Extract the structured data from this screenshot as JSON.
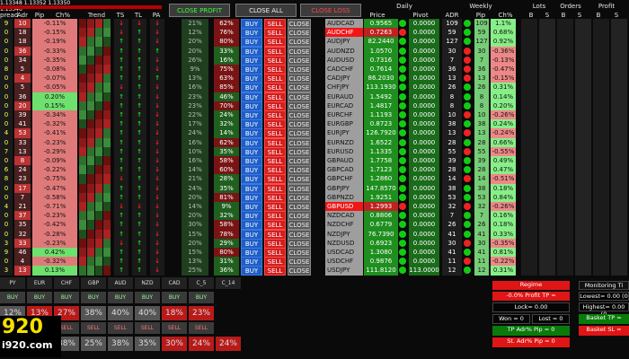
{
  "header": {
    "ticker_line": "1.13348 1.13352 1.13350 1.13346",
    "col_spread": "pread",
    "col_adr": "Adr",
    "col_pip": "Pip",
    "col_chg": "Ch%",
    "col_trend": "Trend",
    "col_ts": "TS",
    "col_tl": "TL",
    "col_pa": "PA",
    "close_profit": "CLOSE PROFIT",
    "close_all": "CLOSE ALL",
    "close_loss": "CLOSE LOSS",
    "daily": "Daily",
    "price": "Price",
    "pivot": "Pivot",
    "weekly": "Weekly",
    "adr": "ADR",
    "pip": "Pip",
    "chg": "Ch%",
    "lots": "Lots",
    "orders": "Orders",
    "profit": "Profit",
    "b": "B",
    "s": "S"
  },
  "labels": {
    "buy": "BUY",
    "sell": "SELL",
    "close": "CLOSE"
  },
  "rows": [
    {
      "sp": "9",
      "adr": "10",
      "pip": "-0.11%",
      "ts": "↓",
      "tl": "↓",
      "pa": "↓",
      "p1": "21%",
      "p2": "62%",
      "sym": "AUDCAD",
      "sr": false,
      "price": "0.9565",
      "pivot": "0.0000",
      "wadr": "109",
      "wpip": "1.1%"
    },
    {
      "sp": "0",
      "adr": "18",
      "pip": "-0.15%",
      "ts": "↓",
      "tl": "↑",
      "pa": "↓",
      "p1": "12%",
      "p2": "76%",
      "sym": "AUDCHF",
      "sr": true,
      "price": "0.7263",
      "pivot": "0.0000",
      "wadr": "59",
      "wpip": "0.68%"
    },
    {
      "sp": "0",
      "adr": "18",
      "pip": "-0.19%",
      "ts": "↑",
      "tl": "↑",
      "pa": "↓",
      "p1": "20%",
      "p2": "80%",
      "sym": "AUDJPY",
      "sr": false,
      "price": "82.2440",
      "pivot": "0.0000",
      "wadr": "127",
      "wpip": "0.92%"
    },
    {
      "sp": "0",
      "adr": "36",
      "pip": "-0.33%",
      "ts": "↑",
      "tl": "↑",
      "pa": "↑",
      "p1": "20%",
      "p2": "33%",
      "sym": "AUDNZD",
      "sr": false,
      "price": "1.0570",
      "pivot": "0.0000",
      "wadr": "30",
      "wpip": "-0.36%"
    },
    {
      "sp": "0",
      "adr": "34",
      "pip": "-0.35%",
      "ts": "↑",
      "tl": "↑",
      "pa": "↓",
      "p1": "26%",
      "p2": "16%",
      "sym": "AUDUSD",
      "sr": false,
      "price": "0.7316",
      "pivot": "0.0000",
      "wadr": "7",
      "wpip": "-0.13%"
    },
    {
      "sp": "8",
      "adr": "5",
      "pip": "-0.08%",
      "ts": "↑",
      "tl": "↑",
      "pa": "↓",
      "p1": "9%",
      "p2": "75%",
      "sym": "CADCHF",
      "sr": false,
      "price": "0.7614",
      "pivot": "0.0000",
      "wadr": "36",
      "wpip": "-0.47%"
    },
    {
      "sp": "0",
      "adr": "4",
      "pip": "-0.07%",
      "ts": "↑",
      "tl": "↑",
      "pa": "↑",
      "p1": "13%",
      "p2": "63%",
      "sym": "CADJPY",
      "sr": false,
      "price": "86.2030",
      "pivot": "0.0000",
      "wadr": "13",
      "wpip": "-0.15%"
    },
    {
      "sp": "0",
      "adr": "5",
      "pip": "-0.05%",
      "ts": "↓",
      "tl": "↑",
      "pa": "↓",
      "p1": "16%",
      "p2": "85%",
      "sym": "CHFJPY",
      "sr": false,
      "price": "113.1930",
      "pivot": "0.0000",
      "wadr": "26",
      "wpip": "0.31%"
    },
    {
      "sp": "0",
      "adr": "36",
      "pip": "0.20%",
      "ts": "↑",
      "tl": "↑",
      "pa": "↓",
      "p1": "23%",
      "p2": "46%",
      "sym": "EURAUD",
      "sr": false,
      "price": "1.5492",
      "pivot": "0.0000",
      "wadr": "8",
      "wpip": "0.14%"
    },
    {
      "sp": "0",
      "adr": "20",
      "pip": "0.15%",
      "ts": "↑",
      "tl": "↑",
      "pa": "↓",
      "p1": "23%",
      "p2": "70%",
      "sym": "EURCAD",
      "sr": false,
      "price": "1.4817",
      "pivot": "0.0000",
      "wadr": "8",
      "wpip": "0.20%"
    },
    {
      "sp": "0",
      "adr": "39",
      "pip": "-0.34%",
      "ts": "↑",
      "tl": "↑",
      "pa": "↓",
      "p1": "22%",
      "p2": "24%",
      "sym": "EURCHF",
      "sr": false,
      "price": "1.1193",
      "pivot": "0.0000",
      "wadr": "10",
      "wpip": "-0.26%"
    },
    {
      "sp": "0",
      "adr": "41",
      "pip": "-0.32%",
      "ts": "↑",
      "tl": "↑",
      "pa": "↓",
      "p1": "17%",
      "p2": "32%",
      "sym": "EURGBP",
      "sr": false,
      "price": "0.8723",
      "pivot": "0.0000",
      "wadr": "38",
      "wpip": "0.24%"
    },
    {
      "sp": "4",
      "adr": "53",
      "pip": "-0.41%",
      "ts": "↑",
      "tl": "↑",
      "pa": "↓",
      "p1": "24%",
      "p2": "14%",
      "sym": "EURJPY",
      "sr": false,
      "price": "126.7920",
      "pivot": "0.0000",
      "wadr": "13",
      "wpip": "-0.24%"
    },
    {
      "sp": "0",
      "adr": "33",
      "pip": "-0.23%",
      "ts": "↑",
      "tl": "↑",
      "pa": "↓",
      "p1": "16%",
      "p2": "62%",
      "sym": "EURNZD",
      "sr": false,
      "price": "1.6522",
      "pivot": "0.0000",
      "wadr": "28",
      "wpip": "0.66%"
    },
    {
      "sp": "7",
      "adr": "13",
      "pip": "-0.29%",
      "ts": "↑",
      "tl": "↑",
      "pa": "↓",
      "p1": "10%",
      "p2": "35%",
      "sym": "EURUSD",
      "sr": false,
      "price": "1.1335",
      "pivot": "0.0000",
      "wadr": "55",
      "wpip": "-0.55%"
    },
    {
      "sp": "0",
      "adr": "8",
      "pip": "-0.09%",
      "ts": "↑",
      "tl": "↑",
      "pa": "↓",
      "p1": "16%",
      "p2": "58%",
      "sym": "GBPAUD",
      "sr": false,
      "price": "1.7758",
      "pivot": "0.0000",
      "wadr": "39",
      "wpip": "0.49%"
    },
    {
      "sp": "6",
      "adr": "24",
      "pip": "-0.22%",
      "ts": "↑",
      "tl": "↑",
      "pa": "↓",
      "p1": "14%",
      "p2": "60%",
      "sym": "GBPCAD",
      "sr": false,
      "price": "1.7123",
      "pivot": "0.0000",
      "wadr": "28",
      "wpip": "0.47%"
    },
    {
      "sp": "8",
      "adr": "23",
      "pip": "-0.75%",
      "ts": "↓",
      "tl": "↑",
      "pa": "↓",
      "p1": "21%",
      "p2": "28%",
      "sym": "GBPCHF",
      "sr": false,
      "price": "1.2860",
      "pivot": "0.0000",
      "wadr": "14",
      "wpip": "-0.51%"
    },
    {
      "sp": "0",
      "adr": "17",
      "pip": "-0.47%",
      "ts": "↑",
      "tl": "↑",
      "pa": "↓",
      "p1": "24%",
      "p2": "35%",
      "sym": "GBPJPY",
      "sr": false,
      "price": "147.8570",
      "pivot": "0.0000",
      "wadr": "38",
      "wpip": "0.18%"
    },
    {
      "sp": "0",
      "adr": "7",
      "pip": "-0.58%",
      "ts": "↑",
      "tl": "↑",
      "pa": "↓",
      "p1": "20%",
      "p2": "81%",
      "sym": "GBPNZD",
      "sr": false,
      "price": "1.9251",
      "pivot": "0.0000",
      "wadr": "53",
      "wpip": "0.84%"
    },
    {
      "sp": "4",
      "adr": "21",
      "pip": "-0.71%",
      "ts": "↓",
      "tl": "↓",
      "pa": "↓",
      "p1": "14%",
      "p2": "9%",
      "sym": "GBPUSD",
      "sr": true,
      "price": "1.2993",
      "pivot": "0.0000",
      "wadr": "32",
      "wpip": "-0.26%"
    },
    {
      "sp": "0",
      "adr": "37",
      "pip": "-0.23%",
      "ts": "↑",
      "tl": "↑",
      "pa": "↓",
      "p1": "20%",
      "p2": "32%",
      "sym": "NZDCAD",
      "sr": false,
      "price": "0.8806",
      "pivot": "0.0000",
      "wadr": "7",
      "wpip": "0.16%"
    },
    {
      "sp": "0",
      "adr": "35",
      "pip": "-0.42%",
      "ts": "↑",
      "tl": "↑",
      "pa": "↓",
      "p1": "30%",
      "p2": "58%",
      "sym": "NZDCHF",
      "sr": false,
      "price": "0.6779",
      "pivot": "0.0000",
      "wadr": "26",
      "wpip": "0.18%"
    },
    {
      "sp": "0",
      "adr": "32",
      "pip": "-0.28%",
      "ts": "↑",
      "tl": "↑",
      "pa": "↓",
      "p1": "15%",
      "p2": "78%",
      "sym": "NZDJPY",
      "sr": false,
      "price": "76.7390",
      "pivot": "0.0000",
      "wadr": "41",
      "wpip": "0.33%"
    },
    {
      "sp": "3",
      "adr": "33",
      "pip": "-0.23%",
      "ts": "↓",
      "tl": "↑",
      "pa": "↓",
      "p1": "20%",
      "p2": "29%",
      "sym": "NZDUSD",
      "sr": false,
      "price": "0.6923",
      "pivot": "0.0000",
      "wadr": "30",
      "wpip": "-0.35%"
    },
    {
      "sp": "9",
      "adr": "46",
      "pip": "0.42%",
      "ts": "↑",
      "tl": "↑",
      "pa": "↓",
      "p1": "15%",
      "p2": "80%",
      "sym": "USDCAD",
      "sr": false,
      "price": "1.3080",
      "pivot": "0.0000",
      "wadr": "41",
      "wpip": "0.81%"
    },
    {
      "sp": "0",
      "adr": "4",
      "pip": "-0.32%",
      "ts": "↑",
      "tl": "↑",
      "pa": "↓",
      "p1": "13%",
      "p2": "31%",
      "sym": "USDCHF",
      "sr": false,
      "price": "0.9876",
      "pivot": "0.0000",
      "wadr": "11",
      "wpip": "-0.22%"
    },
    {
      "sp": "3",
      "adr": "13",
      "pip": "0.13%",
      "ts": "↑",
      "tl": "↑",
      "pa": "↓",
      "p1": "25%",
      "p2": "36%",
      "sym": "USDJPY",
      "sr": false,
      "price": "111.8120",
      "pivot": "113.0000",
      "wadr": "12",
      "wpip": "0.31%"
    }
  ],
  "currencies": [
    "PY",
    "EUR",
    "CHF",
    "GBP",
    "AUD",
    "NZD",
    "CAD",
    "C_5",
    "C_14"
  ],
  "bottom": {
    "buy": "BUY",
    "sell": "SELL",
    "pct_row1": [
      "12%",
      "13%",
      "27%",
      "38%",
      "40%",
      "40%",
      "18%",
      "23%"
    ],
    "pct_row2": [
      "38%",
      "25%",
      "38%",
      "35%",
      "30%",
      "24%",
      "24%"
    ],
    "logo_num": "920",
    "logo_site": "i920.com"
  },
  "right_panel": {
    "regime": "Regime",
    "tp": "-0.0% Profit TP =",
    "lock": "Lock= 0.00",
    "won": "Won = 0",
    "lost": "Lost = 0",
    "tp_adr": "TP Adr% Pip = 0",
    "sl_adr": "St. Adr% Pip = 0"
  },
  "far_panel": {
    "title": "Monitoring Ti",
    "lowest": "Lowest= 0.00 (0",
    "highest": "Highest= 0.00 (0",
    "basket_tp": "Basket TP =",
    "basket_sl": "Basket SL ="
  }
}
